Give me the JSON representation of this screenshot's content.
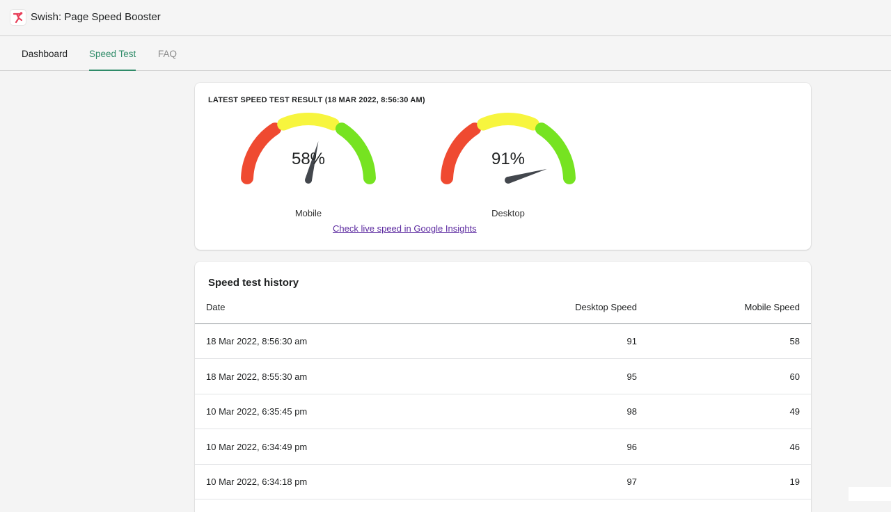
{
  "app": {
    "title": "Swish: Page Speed Booster",
    "logo_icon": "swish-logo-icon"
  },
  "tabs": [
    {
      "label": "Dashboard",
      "active": false
    },
    {
      "label": "Speed Test",
      "active": true
    },
    {
      "label": "FAQ",
      "active": false
    }
  ],
  "latest_result": {
    "heading": "LATEST SPEED TEST RESULT (18 MAR 2022, 8:56:30 AM)",
    "gauges": [
      {
        "label": "Mobile",
        "value_text": "58%",
        "value": 58
      },
      {
        "label": "Desktop",
        "value_text": "91%",
        "value": 91
      }
    ],
    "link_text": "Check live speed in Google Insights",
    "colors": {
      "red": "#ef4a31",
      "yellow": "#f7f53e",
      "green": "#76e321",
      "needle": "#43474d",
      "link": "#5c2aa0"
    }
  },
  "history": {
    "title": "Speed test history",
    "columns": [
      "Date",
      "Desktop Speed",
      "Mobile Speed"
    ],
    "rows": [
      {
        "date": "18 Mar 2022, 8:56:30 am",
        "desktop": "91",
        "mobile": "58"
      },
      {
        "date": "18 Mar 2022, 8:55:30 am",
        "desktop": "95",
        "mobile": "60"
      },
      {
        "date": "10 Mar 2022, 6:35:45 pm",
        "desktop": "98",
        "mobile": "49"
      },
      {
        "date": "10 Mar 2022, 6:34:49 pm",
        "desktop": "96",
        "mobile": "46"
      },
      {
        "date": "10 Mar 2022, 6:34:18 pm",
        "desktop": "97",
        "mobile": "19"
      }
    ]
  },
  "theme": {
    "accent": "#2e8b68"
  }
}
